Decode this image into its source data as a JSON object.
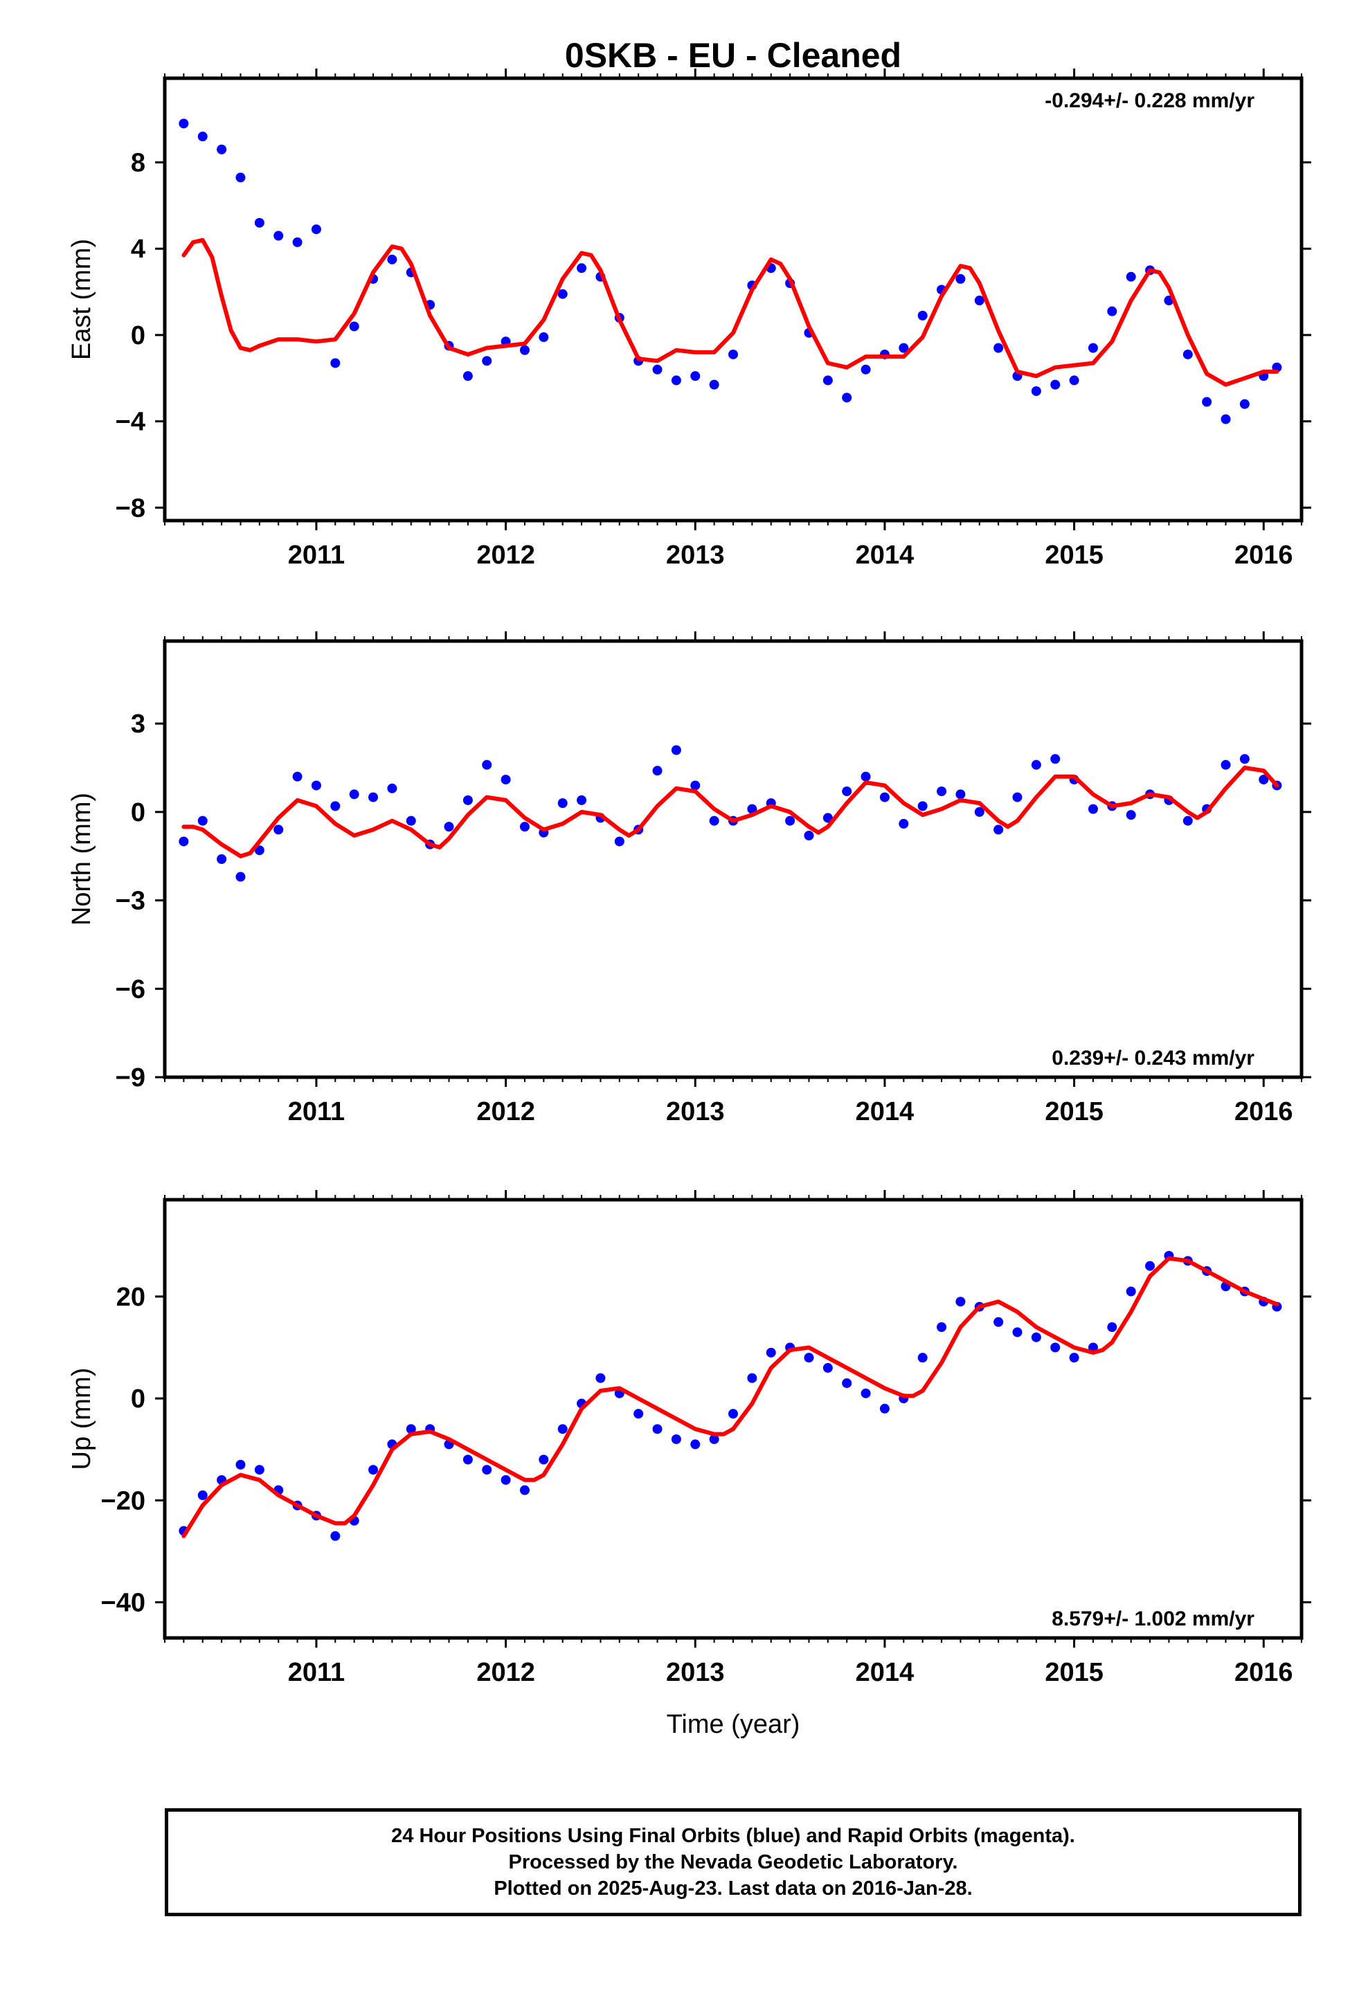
{
  "title": "0SKB  - EU - Cleaned",
  "xlabel": "Time (year)",
  "footer": {
    "line1": "24 Hour Positions Using Final Orbits (blue) and Rapid Orbits (magenta).",
    "line2": "Processed by the Nevada Geodetic Laboratory.",
    "line3": "Plotted on 2025-Aug-23. Last data on 2016-Jan-28."
  },
  "colors": {
    "points": "#0000ff",
    "model": "#ff0000",
    "axes": "#000000"
  },
  "chart_data": [
    {
      "type": "scatter",
      "name": "east",
      "ylabel": "East (mm)",
      "rate": "-0.294+/- 0.228 mm/yr",
      "rate_position": "top-right",
      "xlim": [
        2010.2,
        2016.2
      ],
      "ylim": [
        -8.6,
        11.9
      ],
      "xticks": [
        2011,
        2012,
        2013,
        2014,
        2015,
        2016
      ],
      "yticks": [
        -8,
        -4,
        0,
        4,
        8
      ],
      "series": [
        {
          "kind": "points",
          "x": [
            2010.3,
            2010.4,
            2010.5,
            2010.6,
            2010.7,
            2010.8,
            2010.9,
            2011.0,
            2011.1,
            2011.2,
            2011.3,
            2011.4,
            2011.5,
            2011.6,
            2011.7,
            2011.8,
            2011.9,
            2012.0,
            2012.1,
            2012.2,
            2012.3,
            2012.4,
            2012.5,
            2012.6,
            2012.7,
            2012.8,
            2012.9,
            2013.0,
            2013.1,
            2013.2,
            2013.3,
            2013.4,
            2013.5,
            2013.6,
            2013.7,
            2013.8,
            2013.9,
            2014.0,
            2014.1,
            2014.2,
            2014.3,
            2014.4,
            2014.5,
            2014.6,
            2014.7,
            2014.8,
            2014.9,
            2015.0,
            2015.1,
            2015.2,
            2015.3,
            2015.4,
            2015.5,
            2015.6,
            2015.7,
            2015.8,
            2015.9,
            2016.0,
            2016.07
          ],
          "y": [
            9.8,
            9.2,
            8.6,
            7.3,
            5.2,
            4.6,
            4.3,
            4.9,
            -1.3,
            0.4,
            2.6,
            3.5,
            2.9,
            1.4,
            -0.5,
            -1.9,
            -1.2,
            -0.3,
            -0.7,
            -0.1,
            1.9,
            3.1,
            2.7,
            0.8,
            -1.2,
            -1.6,
            -2.1,
            -1.9,
            -2.3,
            -0.9,
            2.3,
            3.1,
            2.4,
            0.1,
            -2.1,
            -2.9,
            -1.6,
            -0.9,
            -0.6,
            0.9,
            2.1,
            2.6,
            1.6,
            -0.6,
            -1.9,
            -2.6,
            -2.3,
            -2.1,
            -0.6,
            1.1,
            2.7,
            3.0,
            1.6,
            -0.9,
            -3.1,
            -3.9,
            -3.2,
            -1.9,
            -1.5
          ]
        },
        {
          "kind": "model",
          "x": [
            2010.3,
            2010.35,
            2010.4,
            2010.45,
            2010.5,
            2010.55,
            2010.6,
            2010.65,
            2010.7,
            2010.8,
            2010.9,
            2011.0,
            2011.1,
            2011.2,
            2011.3,
            2011.4,
            2011.45,
            2011.5,
            2011.6,
            2011.7,
            2011.8,
            2011.9,
            2012.0,
            2012.1,
            2012.2,
            2012.3,
            2012.4,
            2012.45,
            2012.5,
            2012.6,
            2012.7,
            2012.8,
            2012.9,
            2013.0,
            2013.1,
            2013.2,
            2013.3,
            2013.4,
            2013.45,
            2013.5,
            2013.6,
            2013.7,
            2013.8,
            2013.9,
            2014.0,
            2014.1,
            2014.2,
            2014.3,
            2014.4,
            2014.45,
            2014.5,
            2014.6,
            2014.7,
            2014.8,
            2014.9,
            2015.0,
            2015.1,
            2015.2,
            2015.3,
            2015.4,
            2015.45,
            2015.5,
            2015.6,
            2015.7,
            2015.8,
            2015.9,
            2016.0,
            2016.07
          ],
          "y": [
            3.7,
            4.3,
            4.4,
            3.6,
            1.8,
            0.2,
            -0.6,
            -0.7,
            -0.5,
            -0.2,
            -0.2,
            -0.3,
            -0.2,
            1.0,
            2.9,
            4.1,
            4.0,
            3.3,
            0.9,
            -0.6,
            -0.9,
            -0.6,
            -0.5,
            -0.4,
            0.7,
            2.6,
            3.8,
            3.7,
            3.0,
            0.7,
            -1.1,
            -1.2,
            -0.7,
            -0.8,
            -0.8,
            0.1,
            2.1,
            3.5,
            3.3,
            2.6,
            0.4,
            -1.3,
            -1.5,
            -1.0,
            -1.0,
            -1.0,
            -0.1,
            1.8,
            3.2,
            3.1,
            2.4,
            0.2,
            -1.7,
            -1.9,
            -1.5,
            -1.4,
            -1.3,
            -0.3,
            1.6,
            3.0,
            2.9,
            2.2,
            0.0,
            -1.8,
            -2.3,
            -2.0,
            -1.7,
            -1.7
          ]
        }
      ]
    },
    {
      "type": "scatter",
      "name": "north",
      "ylabel": "North (mm)",
      "rate": "0.239+/- 0.243 mm/yr",
      "rate_position": "bottom-right",
      "xlim": [
        2010.2,
        2016.2
      ],
      "ylim": [
        -9.0,
        5.8
      ],
      "xticks": [
        2011,
        2012,
        2013,
        2014,
        2015,
        2016
      ],
      "yticks": [
        -9,
        -6,
        -3,
        0,
        3
      ],
      "series": [
        {
          "kind": "points",
          "x": [
            2010.3,
            2010.4,
            2010.5,
            2010.6,
            2010.7,
            2010.8,
            2010.9,
            2011.0,
            2011.1,
            2011.2,
            2011.3,
            2011.4,
            2011.5,
            2011.6,
            2011.7,
            2011.8,
            2011.9,
            2012.0,
            2012.1,
            2012.2,
            2012.3,
            2012.4,
            2012.5,
            2012.6,
            2012.7,
            2012.8,
            2012.9,
            2013.0,
            2013.1,
            2013.2,
            2013.3,
            2013.4,
            2013.5,
            2013.6,
            2013.7,
            2013.8,
            2013.9,
            2014.0,
            2014.1,
            2014.2,
            2014.3,
            2014.4,
            2014.5,
            2014.6,
            2014.7,
            2014.8,
            2014.9,
            2015.0,
            2015.1,
            2015.2,
            2015.3,
            2015.4,
            2015.5,
            2015.6,
            2015.7,
            2015.8,
            2015.9,
            2016.0,
            2016.07
          ],
          "y": [
            -1.0,
            -0.3,
            -1.6,
            -2.2,
            -1.3,
            -0.6,
            1.2,
            0.9,
            0.2,
            0.6,
            0.5,
            0.8,
            -0.3,
            -1.1,
            -0.5,
            0.4,
            1.6,
            1.1,
            -0.5,
            -0.7,
            0.3,
            0.4,
            -0.2,
            -1.0,
            -0.6,
            1.4,
            2.1,
            0.9,
            -0.3,
            -0.3,
            0.1,
            0.3,
            -0.3,
            -0.8,
            -0.2,
            0.7,
            1.2,
            0.5,
            -0.4,
            0.2,
            0.7,
            0.6,
            0.0,
            -0.6,
            0.5,
            1.6,
            1.8,
            1.1,
            0.1,
            0.2,
            -0.1,
            0.6,
            0.4,
            -0.3,
            0.1,
            1.6,
            1.8,
            1.1,
            0.9
          ]
        },
        {
          "kind": "model",
          "x": [
            2010.3,
            2010.35,
            2010.4,
            2010.5,
            2010.6,
            2010.65,
            2010.7,
            2010.8,
            2010.9,
            2011.0,
            2011.1,
            2011.2,
            2011.3,
            2011.4,
            2011.5,
            2011.6,
            2011.65,
            2011.7,
            2011.8,
            2011.9,
            2012.0,
            2012.1,
            2012.2,
            2012.3,
            2012.4,
            2012.5,
            2012.6,
            2012.65,
            2012.7,
            2012.8,
            2012.9,
            2013.0,
            2013.1,
            2013.2,
            2013.3,
            2013.4,
            2013.5,
            2013.6,
            2013.65,
            2013.7,
            2013.8,
            2013.9,
            2014.0,
            2014.1,
            2014.2,
            2014.3,
            2014.4,
            2014.5,
            2014.6,
            2014.65,
            2014.7,
            2014.8,
            2014.9,
            2015.0,
            2015.1,
            2015.2,
            2015.3,
            2015.4,
            2015.5,
            2015.6,
            2015.65,
            2015.7,
            2015.8,
            2015.9,
            2016.0,
            2016.07
          ],
          "y": [
            -0.5,
            -0.5,
            -0.6,
            -1.1,
            -1.5,
            -1.4,
            -1.0,
            -0.2,
            0.4,
            0.2,
            -0.4,
            -0.8,
            -0.6,
            -0.3,
            -0.6,
            -1.1,
            -1.2,
            -0.9,
            -0.1,
            0.5,
            0.4,
            -0.2,
            -0.6,
            -0.4,
            0.0,
            -0.1,
            -0.6,
            -0.8,
            -0.6,
            0.2,
            0.8,
            0.7,
            0.1,
            -0.3,
            -0.1,
            0.2,
            0.0,
            -0.5,
            -0.7,
            -0.5,
            0.3,
            1.0,
            0.9,
            0.3,
            -0.1,
            0.1,
            0.4,
            0.3,
            -0.3,
            -0.5,
            -0.3,
            0.5,
            1.2,
            1.2,
            0.6,
            0.2,
            0.3,
            0.6,
            0.5,
            0.0,
            -0.2,
            0.0,
            0.8,
            1.5,
            1.4,
            0.9
          ]
        }
      ]
    },
    {
      "type": "scatter",
      "name": "up",
      "ylabel": "Up (mm)",
      "rate": "8.579+/- 1.002 mm/yr",
      "rate_position": "bottom-right",
      "xlim": [
        2010.2,
        2016.2
      ],
      "ylim": [
        -47,
        39
      ],
      "xticks": [
        2011,
        2012,
        2013,
        2014,
        2015,
        2016
      ],
      "yticks": [
        -40,
        -20,
        0,
        20
      ],
      "series": [
        {
          "kind": "points",
          "x": [
            2010.3,
            2010.4,
            2010.5,
            2010.6,
            2010.7,
            2010.8,
            2010.9,
            2011.0,
            2011.1,
            2011.2,
            2011.3,
            2011.4,
            2011.5,
            2011.6,
            2011.7,
            2011.8,
            2011.9,
            2012.0,
            2012.1,
            2012.2,
            2012.3,
            2012.4,
            2012.5,
            2012.6,
            2012.7,
            2012.8,
            2012.9,
            2013.0,
            2013.1,
            2013.2,
            2013.3,
            2013.4,
            2013.5,
            2013.6,
            2013.7,
            2013.8,
            2013.9,
            2014.0,
            2014.1,
            2014.2,
            2014.3,
            2014.4,
            2014.5,
            2014.6,
            2014.7,
            2014.8,
            2014.9,
            2015.0,
            2015.1,
            2015.2,
            2015.3,
            2015.4,
            2015.5,
            2015.6,
            2015.7,
            2015.8,
            2015.9,
            2016.0,
            2016.07
          ],
          "y": [
            -26,
            -19,
            -16,
            -13,
            -14,
            -18,
            -21,
            -23,
            -27,
            -24,
            -14,
            -9,
            -6,
            -6,
            -9,
            -12,
            -14,
            -16,
            -18,
            -12,
            -6,
            -1,
            4,
            1,
            -3,
            -6,
            -8,
            -9,
            -8,
            -3,
            4,
            9,
            10,
            8,
            6,
            3,
            1,
            -2,
            0,
            8,
            14,
            19,
            18,
            15,
            13,
            12,
            10,
            8,
            10,
            14,
            21,
            26,
            28,
            27,
            25,
            22,
            21,
            19,
            18
          ]
        },
        {
          "kind": "model",
          "x": [
            2010.3,
            2010.4,
            2010.5,
            2010.6,
            2010.7,
            2010.8,
            2010.9,
            2011.0,
            2011.1,
            2011.15,
            2011.2,
            2011.3,
            2011.4,
            2011.5,
            2011.6,
            2011.7,
            2011.8,
            2011.9,
            2012.0,
            2012.1,
            2012.15,
            2012.2,
            2012.3,
            2012.4,
            2012.5,
            2012.6,
            2012.7,
            2012.8,
            2012.9,
            2013.0,
            2013.1,
            2013.15,
            2013.2,
            2013.3,
            2013.4,
            2013.5,
            2013.6,
            2013.7,
            2013.8,
            2013.9,
            2014.0,
            2014.1,
            2014.15,
            2014.2,
            2014.3,
            2014.4,
            2014.5,
            2014.6,
            2014.7,
            2014.8,
            2014.9,
            2015.0,
            2015.1,
            2015.15,
            2015.2,
            2015.3,
            2015.4,
            2015.5,
            2015.6,
            2015.7,
            2015.8,
            2015.9,
            2016.0,
            2016.07
          ],
          "y": [
            -27,
            -21,
            -17,
            -15,
            -16,
            -19,
            -21,
            -23,
            -24.5,
            -24.5,
            -23,
            -17,
            -10,
            -7,
            -6.5,
            -8,
            -10,
            -12,
            -14,
            -16,
            -16,
            -15,
            -9,
            -2,
            1.5,
            2,
            0,
            -2,
            -4,
            -6,
            -7,
            -7,
            -6,
            -1,
            6,
            9.5,
            10,
            8,
            6,
            4,
            2,
            0.5,
            0.5,
            1.5,
            7,
            14,
            18,
            19,
            17,
            14,
            12,
            10,
            9,
            9.5,
            11,
            17,
            24,
            27.5,
            27,
            25,
            23,
            21,
            19.5,
            18.5
          ]
        }
      ]
    }
  ]
}
